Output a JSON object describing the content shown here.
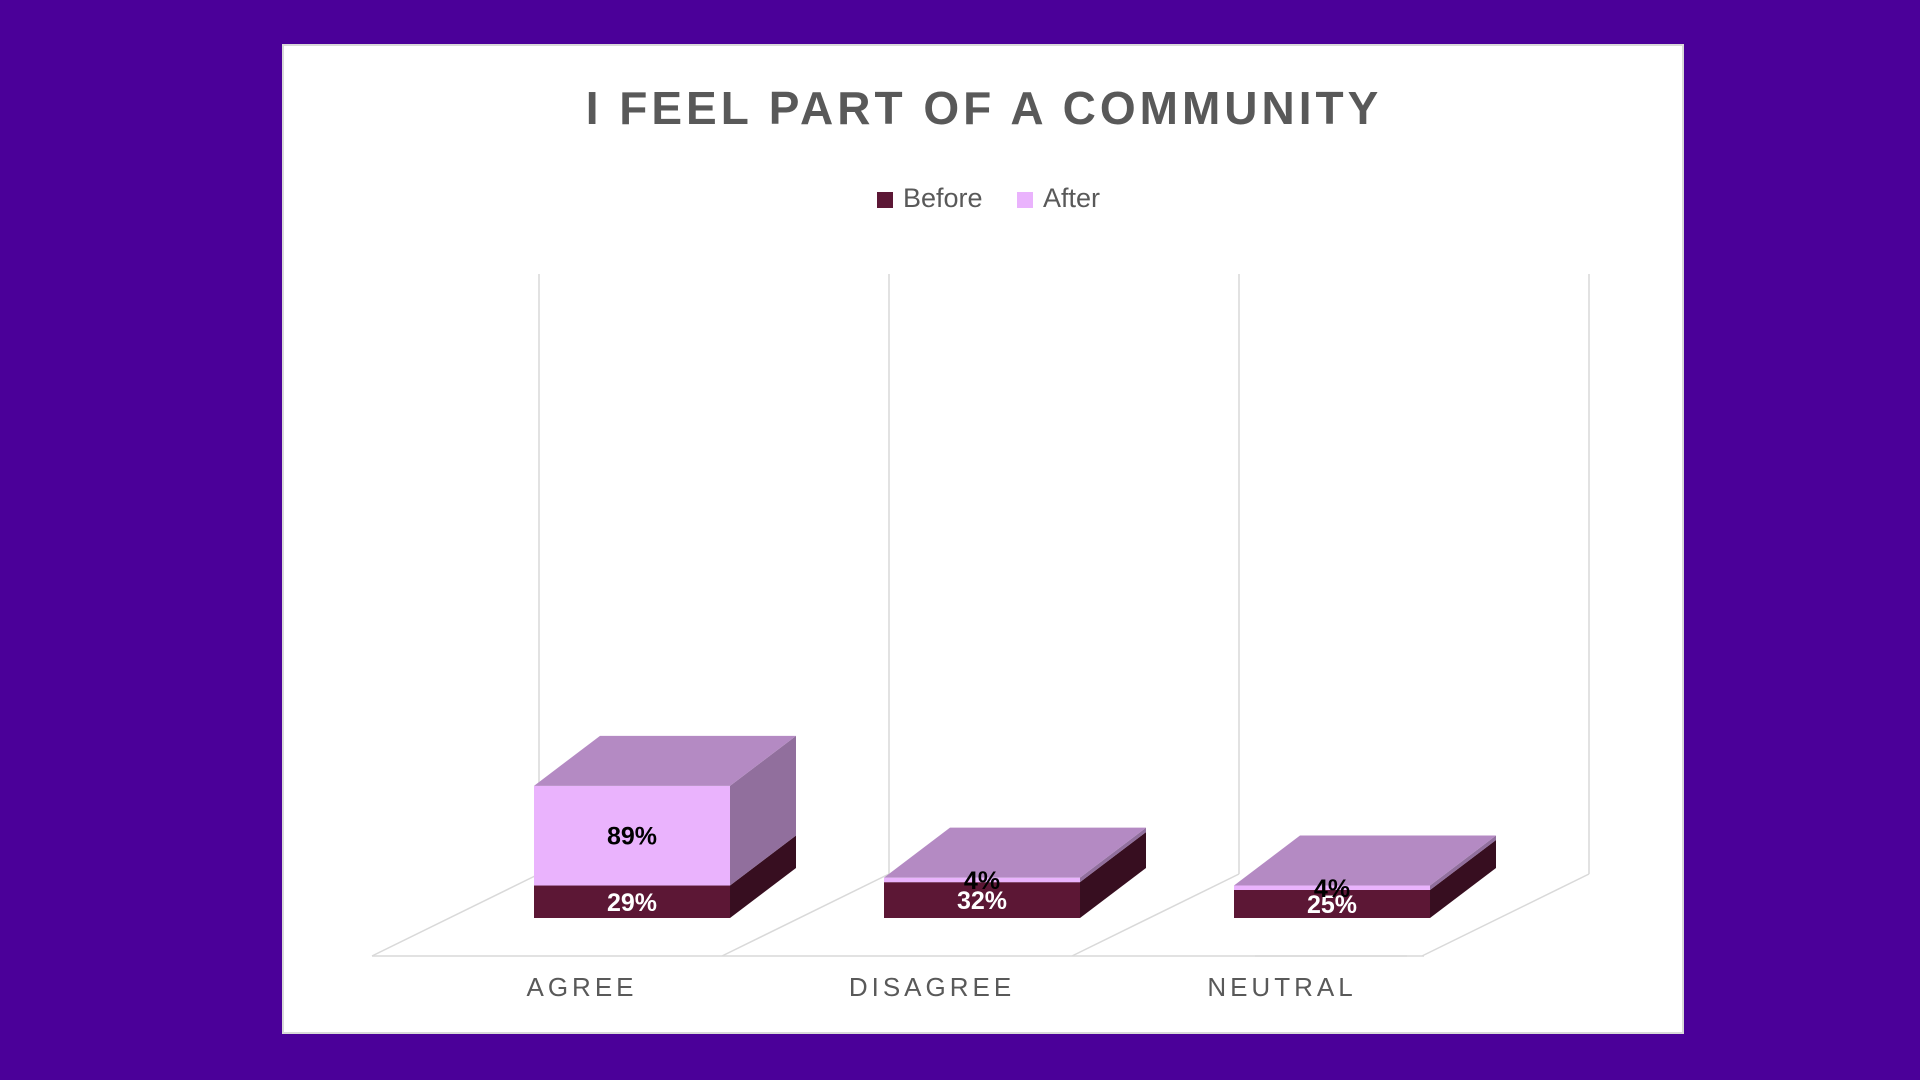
{
  "chart_data": {
    "type": "bar",
    "stacked": true,
    "render_3d": true,
    "title": "I FEEL PART OF A COMMUNITY",
    "xlabel": "",
    "ylabel": "",
    "categories": [
      "AGREE",
      "DISAGREE",
      "NEUTRAL"
    ],
    "series": [
      {
        "name": "Before",
        "values": [
          29,
          32,
          25
        ],
        "color": "#5c1735",
        "label_color": "#ffffff"
      },
      {
        "name": "After",
        "values": [
          89,
          4,
          4
        ],
        "color": "#eab3fd",
        "label_color": "#000000"
      }
    ],
    "value_labels": [
      [
        "29%",
        "32%",
        "25%"
      ],
      [
        "89%",
        "4%",
        "4%"
      ]
    ],
    "value_axis_visible": false,
    "grid": true,
    "legend_position": "top"
  },
  "colors": {
    "background": "#4b0099",
    "card": "#ffffff",
    "title_text": "#595959",
    "axis_text": "#595959",
    "gridline": "#d9d9d9"
  }
}
